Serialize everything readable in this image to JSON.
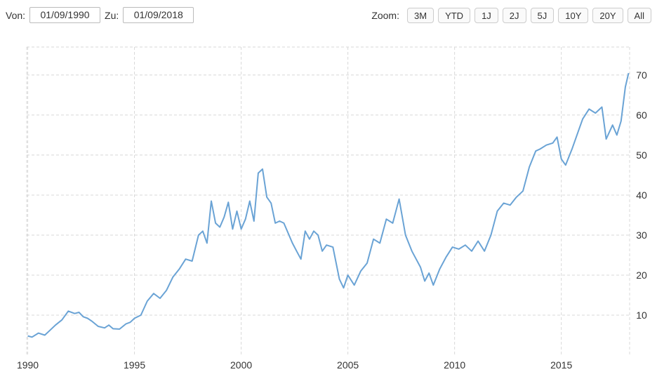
{
  "range": {
    "from_label": "Von:",
    "from_value": "01/09/1990",
    "to_label": "Zu:",
    "to_value": "01/09/2018"
  },
  "zoom": {
    "label": "Zoom:",
    "buttons": [
      "3M",
      "YTD",
      "1J",
      "2J",
      "5J",
      "10Y",
      "20Y",
      "All"
    ]
  },
  "colors": {
    "line": "#6aa3d5",
    "grid": "#d8d8d8"
  },
  "chart_data": {
    "type": "line",
    "title": "",
    "xlabel": "",
    "ylabel": "",
    "x_tick_labels": [
      "1990",
      "1995",
      "2000",
      "2005",
      "2010",
      "2015"
    ],
    "y_tick_labels": [
      "10",
      "20",
      "30",
      "40",
      "50",
      "60",
      "70"
    ],
    "xlim": [
      1989.95,
      2018.2
    ],
    "ylim": [
      0,
      77
    ],
    "grid": true,
    "legend": "none",
    "series": [
      {
        "x": [
          1990.0,
          1990.2,
          1990.5,
          1990.8,
          1991.0,
          1991.3,
          1991.6,
          1991.9,
          1992.2,
          1992.4,
          1992.6,
          1992.8,
          1993.0,
          1993.3,
          1993.6,
          1993.8,
          1994.0,
          1994.3,
          1994.6,
          1994.8,
          1995.0,
          1995.3,
          1995.6,
          1995.9,
          1996.2,
          1996.5,
          1996.8,
          1997.1,
          1997.4,
          1997.7,
          1998.0,
          1998.2,
          1998.4,
          1998.6,
          1998.8,
          1999.0,
          1999.2,
          1999.4,
          1999.6,
          1999.8,
          2000.0,
          2000.2,
          2000.4,
          2000.6,
          2000.8,
          2001.0,
          2001.2,
          2001.4,
          2001.6,
          2001.8,
          2002.0,
          2002.2,
          2002.4,
          2002.6,
          2002.8,
          2003.0,
          2003.2,
          2003.4,
          2003.6,
          2003.8,
          2004.0,
          2004.3,
          2004.6,
          2004.8,
          2005.0,
          2005.3,
          2005.6,
          2005.9,
          2006.2,
          2006.5,
          2006.8,
          2007.1,
          2007.4,
          2007.7,
          2008.0,
          2008.2,
          2008.4,
          2008.6,
          2008.8,
          2009.0,
          2009.3,
          2009.6,
          2009.9,
          2010.2,
          2010.5,
          2010.8,
          2011.1,
          2011.4,
          2011.7,
          2012.0,
          2012.3,
          2012.6,
          2012.9,
          2013.2,
          2013.5,
          2013.8,
          2014.0,
          2014.3,
          2014.6,
          2014.8,
          2015.0,
          2015.2,
          2015.5,
          2015.8,
          2016.0,
          2016.3,
          2016.6,
          2016.9,
          2017.1,
          2017.4,
          2017.6,
          2017.8,
          2018.0,
          2018.15
        ],
        "y": [
          4.8,
          4.5,
          5.5,
          5.0,
          6.0,
          7.5,
          8.8,
          11.0,
          10.4,
          10.7,
          9.6,
          9.2,
          8.5,
          7.2,
          6.8,
          7.5,
          6.6,
          6.5,
          7.8,
          8.2,
          9.2,
          10.0,
          13.5,
          15.4,
          14.2,
          16.2,
          19.5,
          21.5,
          24.0,
          23.5,
          30.0,
          31.0,
          28.0,
          38.5,
          33.0,
          32.0,
          34.5,
          38.2,
          31.5,
          36.0,
          31.5,
          34.0,
          38.5,
          33.5,
          45.5,
          46.5,
          39.5,
          38.0,
          33.0,
          33.5,
          33.0,
          30.5,
          28.0,
          26.0,
          24.0,
          31.0,
          29.0,
          31.0,
          30.0,
          26.0,
          27.5,
          27.0,
          19.0,
          16.8,
          20.0,
          17.5,
          21.0,
          23.0,
          29.0,
          28.0,
          34.0,
          33.0,
          39.0,
          30.0,
          26.0,
          24.0,
          22.0,
          18.5,
          20.5,
          17.5,
          21.5,
          24.5,
          27.0,
          26.5,
          27.5,
          26.0,
          28.5,
          26.0,
          30.0,
          36.0,
          38.0,
          37.5,
          39.5,
          41.0,
          47.0,
          51.0,
          51.5,
          52.5,
          53.0,
          54.5,
          49.0,
          47.5,
          51.5,
          56.0,
          59.0,
          61.5,
          60.5,
          62.0,
          54.0,
          57.5,
          55.0,
          58.5,
          67.0,
          70.5
        ]
      }
    ]
  }
}
